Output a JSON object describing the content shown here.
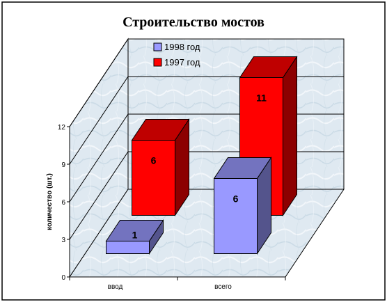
{
  "chart_data": {
    "type": "bar",
    "title": "Строительство мостов",
    "ylabel": "количество (шт.)",
    "xlabel": "",
    "categories": [
      "ввод",
      "всего"
    ],
    "yticks": [
      "0",
      "3",
      "6",
      "9",
      "12"
    ],
    "ylim": [
      0,
      12
    ],
    "legend_placement": "top-center",
    "series": [
      {
        "name": "1998 год",
        "values": [
          1,
          6
        ],
        "color": "#9999ff",
        "labels": [
          "1",
          "6"
        ]
      },
      {
        "name": "1997 год",
        "values": [
          6,
          11
        ],
        "color": "#ff0000",
        "labels": [
          "6",
          "11"
        ]
      }
    ]
  }
}
